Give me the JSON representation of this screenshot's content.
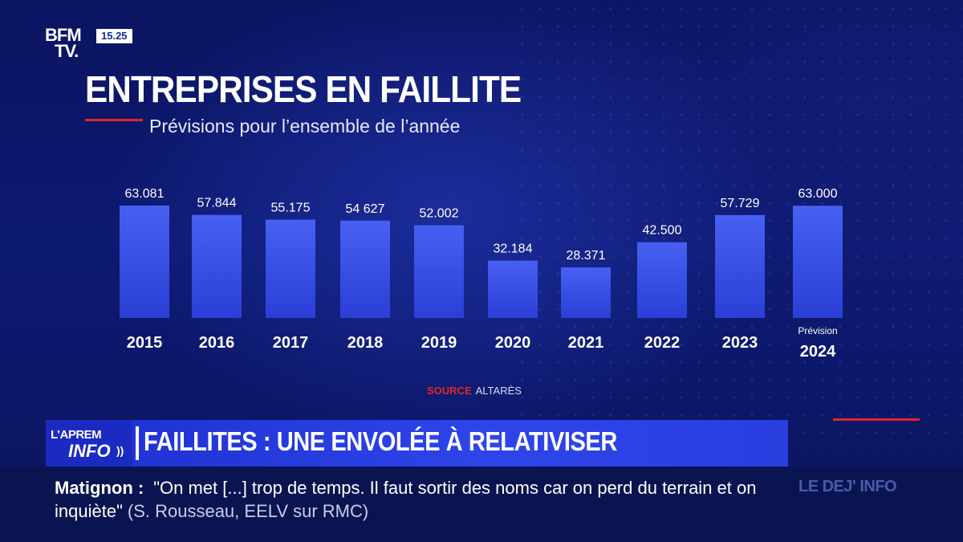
{
  "channel": {
    "logo_line1": "BFM",
    "logo_line2": "TV.",
    "clock": "15.25"
  },
  "chart_data": {
    "type": "bar",
    "title": "ENTREPRISES EN FAILLITE",
    "subtitle": "Prévisions pour l’ensemble de l’année",
    "categories": [
      "2015",
      "2016",
      "2017",
      "2018",
      "2019",
      "2020",
      "2021",
      "2022",
      "2023",
      "2024"
    ],
    "category_notes": [
      "",
      "",
      "",
      "",
      "",
      "",
      "",
      "",
      "",
      "Prévision"
    ],
    "values": [
      63081,
      57844,
      55175,
      54627,
      52002,
      32184,
      28371,
      42500,
      57729,
      63000
    ],
    "value_labels": [
      "63.081",
      "57.844",
      "55.175",
      "54 627",
      "52.002",
      "32.184",
      "28.371",
      "42.500",
      "57.729",
      "63.000"
    ],
    "xlabel": "",
    "ylabel": "",
    "grid": false,
    "bar_color": "#3a55e6"
  },
  "source": {
    "label": "SOURCE",
    "value": "ALTARÈS"
  },
  "banner": {
    "program_line1": "L’APREM",
    "program_line2": "INFO",
    "headline": "FAILLITES : UNE ENVOLÉE À RELATIVISER",
    "accent_color": "#e2252b"
  },
  "ticker": {
    "speaker": "Matignon :",
    "quote": "\"On met [...] trop de temps. Il faut sortir des noms car on perd du terrain et on inquiète\"",
    "attribution": "(S. Rousseau, EELV sur RMC)",
    "next_program": "LE DEJ' INFO"
  }
}
